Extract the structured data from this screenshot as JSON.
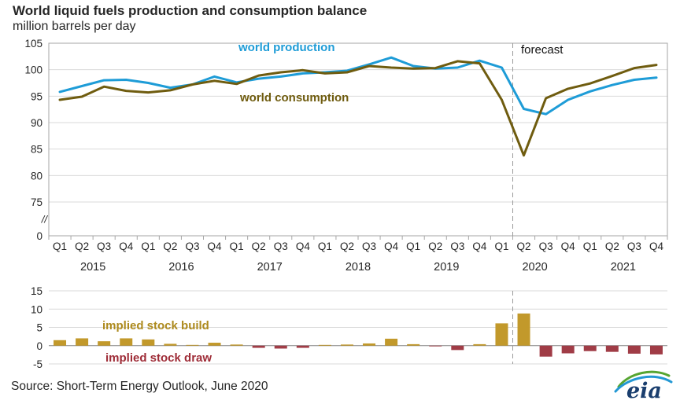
{
  "header": {
    "title": "World liquid fuels production and consumption balance",
    "subtitle": "million barrels per day"
  },
  "annotations": {
    "production_label": "world production",
    "consumption_label": "world consumption",
    "forecast_label": "forecast",
    "stock_build_label": "implied stock build",
    "stock_draw_label": "implied stock draw"
  },
  "footer": {
    "source": "Source: Short-Term Energy Outlook, June 2020",
    "logo_text": "eia"
  },
  "colors": {
    "production": "#1e9cd7",
    "consumption": "#6f5c0f",
    "stock_build": "#c2992b",
    "stock_build_text": "#ad8a1d",
    "stock_draw": "#a03c46",
    "stock_draw_text": "#9e2b36",
    "grid": "#d9d9d9",
    "frame": "#a6a6a6",
    "zero_axis": "#808080",
    "forecast_line": "#999999",
    "text": "#262626"
  },
  "chart_data": [
    {
      "type": "line",
      "title": "World liquid fuels production and consumption balance",
      "ylabel": "million barrels per day",
      "quarter_labels": [
        "Q1",
        "Q2",
        "Q3",
        "Q4"
      ],
      "years": [
        "2015",
        "2016",
        "2017",
        "2018",
        "2019",
        "2020",
        "2021"
      ],
      "yticks": [
        105,
        100,
        95,
        90,
        85,
        80,
        75
      ],
      "zero_tick": "0",
      "axis_break": "//",
      "ylim_display": [
        75,
        105
      ],
      "grid": true,
      "legend_position": "inline-annotations",
      "forecast_start_index": 21,
      "series": [
        {
          "name": "world production",
          "color": "#1e9cd7",
          "values": [
            95.8,
            96.9,
            98.0,
            98.1,
            97.5,
            96.6,
            97.2,
            98.7,
            97.6,
            98.3,
            98.7,
            99.3,
            99.5,
            99.8,
            101.0,
            102.3,
            100.7,
            100.2,
            100.4,
            101.7,
            100.4,
            92.6,
            91.6,
            94.3,
            95.9,
            97.1,
            98.1,
            98.5
          ]
        },
        {
          "name": "world consumption",
          "color": "#6f5c0f",
          "values": [
            94.3,
            94.9,
            96.8,
            96.0,
            95.7,
            96.1,
            97.2,
            97.9,
            97.3,
            98.9,
            99.5,
            99.9,
            99.3,
            99.5,
            100.7,
            100.4,
            100.2,
            100.3,
            101.6,
            101.2,
            94.3,
            83.8,
            94.6,
            96.4,
            97.4,
            98.8,
            100.3,
            100.9
          ]
        }
      ]
    },
    {
      "type": "bar",
      "name": "implied stock change (build positive, draw negative)",
      "yticks": [
        15,
        10,
        5,
        0,
        -5
      ],
      "ylim": [
        -5,
        15
      ],
      "forecast_start_index": 21,
      "values": [
        1.5,
        2.0,
        1.2,
        2.0,
        1.7,
        0.5,
        0.2,
        0.8,
        0.3,
        -0.6,
        -0.8,
        -0.6,
        0.2,
        0.3,
        0.6,
        1.9,
        0.4,
        -0.2,
        -1.2,
        0.4,
        6.1,
        8.8,
        -3.0,
        -2.1,
        -1.5,
        -1.7,
        -2.2,
        -2.4
      ],
      "color_positive": "#c2992b",
      "color_negative": "#a03c46"
    }
  ]
}
